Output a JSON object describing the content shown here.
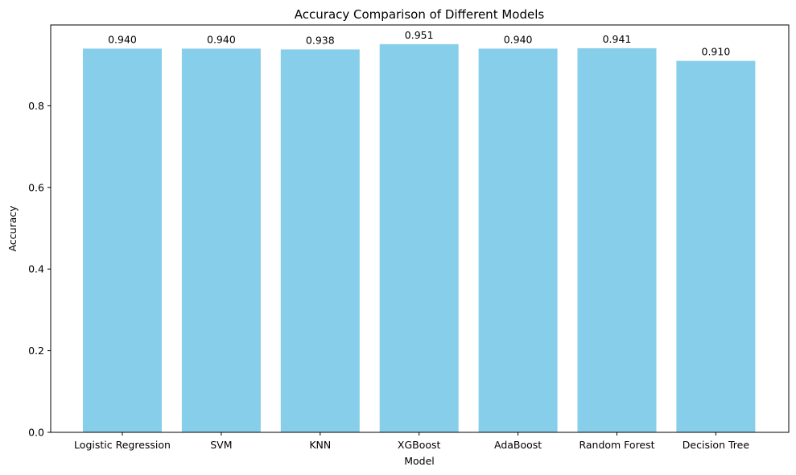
{
  "chart_data": {
    "type": "bar",
    "title": "Accuracy Comparison of Different Models",
    "xlabel": "Model",
    "ylabel": "Accuracy",
    "categories": [
      "Logistic Regression",
      "SVM",
      "KNN",
      "XGBoost",
      "AdaBoost",
      "Random Forest",
      "Decision Tree"
    ],
    "values": [
      0.94,
      0.94,
      0.938,
      0.951,
      0.94,
      0.941,
      0.91
    ],
    "value_labels": [
      "0.940",
      "0.940",
      "0.938",
      "0.951",
      "0.940",
      "0.941",
      "0.910"
    ],
    "ylim": [
      0,
      0.998
    ],
    "yticks": [
      0.0,
      0.2,
      0.4,
      0.6,
      0.8
    ],
    "ytick_labels": [
      "0.0",
      "0.2",
      "0.4",
      "0.6",
      "0.8"
    ],
    "bar_color": "#87ceeb",
    "grid": false,
    "legend": "none"
  }
}
